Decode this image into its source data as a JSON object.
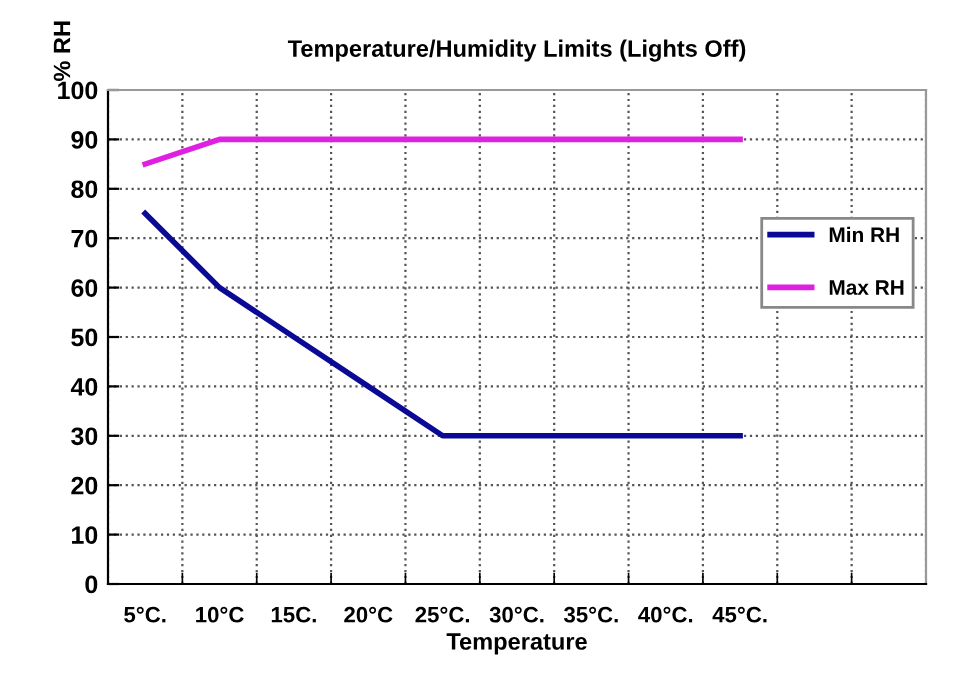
{
  "chart_data": {
    "type": "line",
    "title": "Temperature/Humidity Limits (Lights Off)",
    "xlabel": "Temperature",
    "ylabel": "% RH",
    "categories": [
      "5°C.",
      "10°C",
      "15C.",
      "20°C",
      "25°C.",
      "30°C.",
      "35°C.",
      "40°C.",
      "45°C.",
      null,
      null
    ],
    "series": [
      {
        "name": "Min RH",
        "color": "#0a0a96",
        "values": [
          75,
          60,
          50,
          40,
          30,
          30,
          30,
          30,
          30,
          null,
          null
        ]
      },
      {
        "name": "Max RH",
        "color": "#e020e0",
        "values": [
          85,
          90,
          90,
          90,
          90,
          90,
          90,
          90,
          90,
          null,
          null
        ]
      }
    ],
    "ylim": [
      0,
      100
    ],
    "yticks": [
      0,
      10,
      20,
      30,
      40,
      50,
      60,
      70,
      80,
      90,
      100
    ],
    "grid": true,
    "legend": "right",
    "marker": "none",
    "line_style": "solid"
  }
}
